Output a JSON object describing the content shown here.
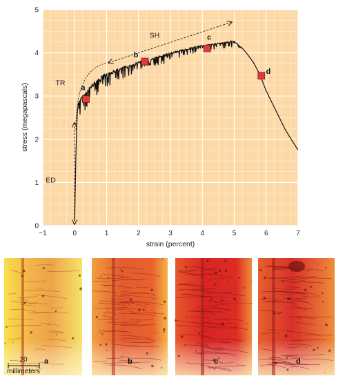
{
  "chart_data": {
    "type": "line",
    "xlabel": "strain (percent)",
    "ylabel": "stress (megapascals)",
    "xlim": [
      -1,
      7
    ],
    "ylim": [
      0,
      5
    ],
    "xticks": [
      "−1",
      "0",
      "1",
      "2",
      "3",
      "4",
      "5",
      "6",
      "7"
    ],
    "yticks": [
      "0",
      "1",
      "2",
      "3",
      "4",
      "5"
    ],
    "grid": true,
    "colors": {
      "background": "#fcd9a6",
      "grid": "#ffffff",
      "line": "#111111",
      "marker": "#e23b3b"
    },
    "series": [
      {
        "x": [
          0.0,
          0.02,
          0.05,
          0.08,
          0.12,
          0.16,
          0.2,
          0.25,
          0.3,
          0.4,
          0.5,
          0.7,
          1.0,
          1.3,
          1.6,
          2.0,
          2.4,
          2.8,
          3.2,
          3.6,
          4.0,
          4.2,
          4.4,
          4.6,
          4.8,
          4.9,
          5.0,
          5.2,
          5.4,
          5.6,
          5.8,
          6.0,
          6.2,
          6.4,
          6.6,
          6.8,
          7.0
        ],
        "y": [
          0.1,
          1.0,
          2.0,
          2.6,
          2.85,
          2.95,
          2.98,
          3.0,
          3.05,
          3.15,
          3.25,
          3.4,
          3.55,
          3.62,
          3.7,
          3.8,
          3.88,
          3.97,
          4.05,
          4.12,
          4.18,
          4.2,
          4.22,
          4.24,
          4.26,
          4.28,
          4.27,
          4.15,
          3.98,
          3.78,
          3.5,
          3.12,
          2.82,
          2.52,
          2.22,
          1.98,
          1.75
        ]
      }
    ],
    "markers": [
      {
        "label": "a",
        "x": 0.35,
        "y": 2.93
      },
      {
        "label": "b",
        "x": 2.2,
        "y": 3.8
      },
      {
        "label": "c",
        "x": 4.15,
        "y": 4.1
      },
      {
        "label": "d",
        "x": 5.85,
        "y": 3.47
      }
    ],
    "annotations": [
      {
        "text": "ED",
        "x": -0.75,
        "y": 1.0
      },
      {
        "text": "TR",
        "x": -0.45,
        "y": 3.25
      },
      {
        "text": "SH",
        "x": 2.5,
        "y": 4.35
      }
    ]
  },
  "panels": [
    {
      "label": "a"
    },
    {
      "label": "b"
    },
    {
      "label": "c"
    },
    {
      "label": "d"
    }
  ],
  "scale_bar": {
    "value": "20",
    "unit": "millimeters"
  }
}
